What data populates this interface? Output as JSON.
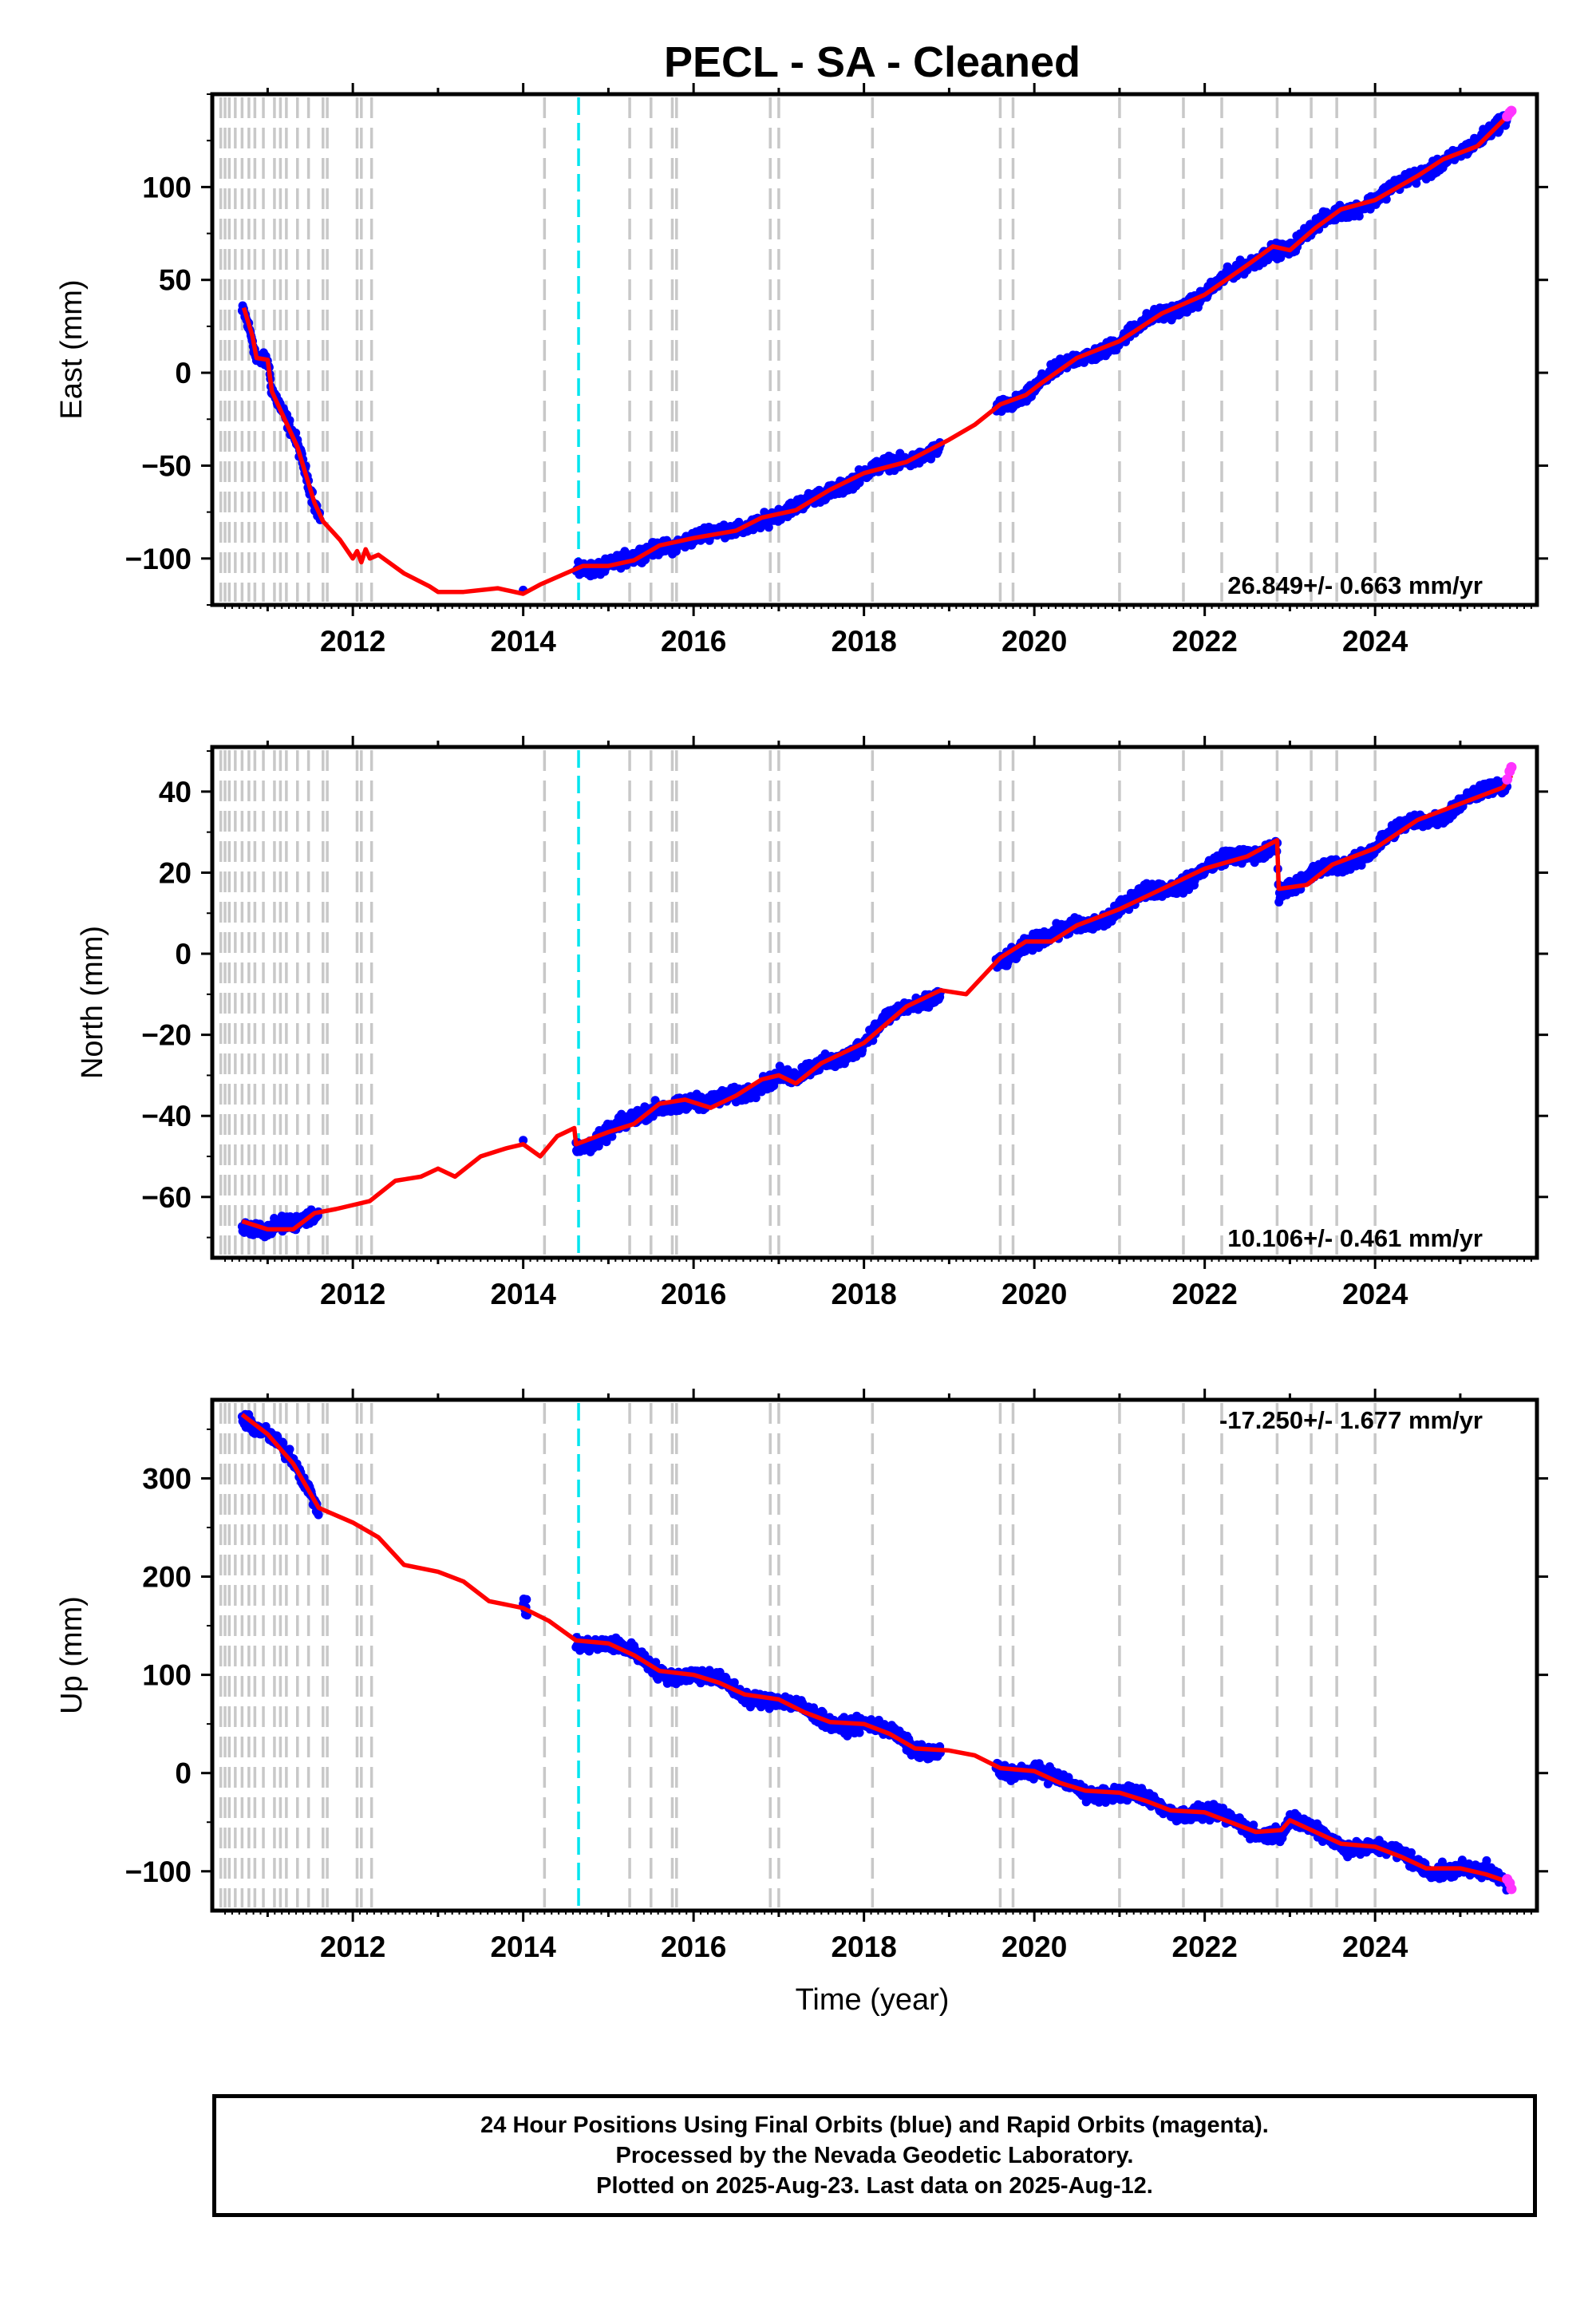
{
  "title": "PECL  - SA - Cleaned",
  "xlabel": "Time (year)",
  "colors": {
    "final": "#0000ff",
    "rapid": "#ff33ff",
    "model": "#ff0000",
    "equipment_change": "#c8c8c8",
    "earthquake": "#00e5ee"
  },
  "footer": {
    "line1": "24 Hour Positions Using Final Orbits (blue) and Rapid Orbits (magenta).",
    "line2": "Processed by the Nevada Geodetic Laboratory.",
    "line3": "Plotted on 2025-Aug-23. Last data on 2025-Aug-12."
  },
  "chart_data": [
    {
      "type": "scatter",
      "ylabel": "East (mm)",
      "rate_label": "26.849+/- 0.663 mm/yr",
      "xlim": [
        2010.35,
        2025.9
      ],
      "ylim": [
        -125,
        150
      ],
      "xticks": [
        2012,
        2014,
        2016,
        2018,
        2020,
        2022,
        2024
      ],
      "yticks": [
        -100,
        -50,
        0,
        50,
        100
      ],
      "model": [
        [
          2010.72,
          35
        ],
        [
          2010.82,
          20
        ],
        [
          2010.87,
          8
        ],
        [
          2011.0,
          7
        ],
        [
          2011.05,
          -10
        ],
        [
          2011.2,
          -25
        ],
        [
          2011.35,
          -40
        ],
        [
          2011.45,
          -55
        ],
        [
          2011.55,
          -70
        ],
        [
          2011.65,
          -80
        ],
        [
          2011.75,
          -85
        ],
        [
          2011.85,
          -90
        ],
        [
          2012.0,
          -100
        ],
        [
          2012.05,
          -96
        ],
        [
          2012.1,
          -102
        ],
        [
          2012.15,
          -95
        ],
        [
          2012.2,
          -100
        ],
        [
          2012.3,
          -98
        ],
        [
          2012.6,
          -108
        ],
        [
          2012.9,
          -115
        ],
        [
          2013.0,
          -118
        ],
        [
          2013.3,
          -118
        ],
        [
          2013.7,
          -116
        ],
        [
          2014.0,
          -119
        ],
        [
          2014.2,
          -114
        ],
        [
          2014.5,
          -108
        ],
        [
          2014.7,
          -104
        ],
        [
          2015.0,
          -104
        ],
        [
          2015.3,
          -101
        ],
        [
          2015.6,
          -93
        ],
        [
          2016.0,
          -89
        ],
        [
          2016.5,
          -85
        ],
        [
          2016.8,
          -78
        ],
        [
          2017.2,
          -74
        ],
        [
          2017.6,
          -63
        ],
        [
          2018.0,
          -54
        ],
        [
          2018.5,
          -48
        ],
        [
          2019.0,
          -36
        ],
        [
          2019.3,
          -28
        ],
        [
          2019.6,
          -17
        ],
        [
          2019.9,
          -12
        ],
        [
          2020.1,
          -5
        ],
        [
          2020.5,
          8
        ],
        [
          2021.0,
          17
        ],
        [
          2021.5,
          32
        ],
        [
          2022.0,
          42
        ],
        [
          2022.5,
          58
        ],
        [
          2022.8,
          68
        ],
        [
          2023.0,
          66
        ],
        [
          2023.3,
          78
        ],
        [
          2023.6,
          88
        ],
        [
          2024.0,
          93
        ],
        [
          2024.5,
          106
        ],
        [
          2024.8,
          115
        ],
        [
          2025.2,
          122
        ],
        [
          2025.55,
          138
        ]
      ],
      "final_segments": [
        [
          2010.7,
          2011.62
        ],
        [
          2014.62,
          2018.9
        ],
        [
          2019.55,
          2025.55
        ]
      ],
      "final_isolated": [
        [
          2014.0,
          -117
        ]
      ],
      "rapid": [
        [
          2025.55,
          138
        ],
        [
          2025.58,
          140
        ],
        [
          2025.6,
          141
        ]
      ],
      "scatter_mm": 3.0,
      "seasonal_mm": 2.0
    },
    {
      "type": "scatter",
      "ylabel": "North (mm)",
      "rate_label": "10.106+/- 0.461 mm/yr",
      "xlim": [
        2010.35,
        2025.9
      ],
      "ylim": [
        -75,
        51
      ],
      "xticks": [
        2012,
        2014,
        2016,
        2018,
        2020,
        2022,
        2024
      ],
      "yticks": [
        -60,
        -40,
        -20,
        0,
        20,
        40
      ],
      "model": [
        [
          2010.7,
          -66
        ],
        [
          2011.0,
          -68
        ],
        [
          2011.3,
          -68
        ],
        [
          2011.55,
          -64
        ],
        [
          2011.8,
          -63
        ],
        [
          2012.0,
          -62
        ],
        [
          2012.2,
          -61
        ],
        [
          2012.5,
          -56
        ],
        [
          2012.8,
          -55
        ],
        [
          2013.0,
          -53
        ],
        [
          2013.2,
          -55
        ],
        [
          2013.5,
          -50
        ],
        [
          2013.8,
          -48
        ],
        [
          2014.0,
          -47
        ],
        [
          2014.2,
          -50
        ],
        [
          2014.4,
          -45
        ],
        [
          2014.6,
          -43
        ],
        [
          2014.62,
          -47
        ],
        [
          2015.0,
          -44
        ],
        [
          2015.3,
          -42
        ],
        [
          2015.6,
          -37
        ],
        [
          2015.9,
          -36
        ],
        [
          2016.2,
          -38
        ],
        [
          2016.5,
          -35
        ],
        [
          2016.8,
          -31
        ],
        [
          2017.0,
          -30
        ],
        [
          2017.2,
          -32
        ],
        [
          2017.5,
          -27
        ],
        [
          2018.0,
          -22
        ],
        [
          2018.5,
          -13
        ],
        [
          2018.9,
          -9
        ],
        [
          2019.2,
          -10
        ],
        [
          2019.6,
          -1
        ],
        [
          2019.9,
          3
        ],
        [
          2020.2,
          3
        ],
        [
          2020.5,
          7
        ],
        [
          2021.0,
          11
        ],
        [
          2021.5,
          16
        ],
        [
          2022.0,
          21
        ],
        [
          2022.5,
          24
        ],
        [
          2022.85,
          28
        ],
        [
          2022.87,
          16
        ],
        [
          2023.2,
          17
        ],
        [
          2023.5,
          22
        ],
        [
          2024.0,
          26
        ],
        [
          2024.5,
          33
        ],
        [
          2025.0,
          37
        ],
        [
          2025.5,
          41
        ],
        [
          2025.6,
          44
        ]
      ],
      "final_segments": [
        [
          2010.7,
          2011.6
        ],
        [
          2014.62,
          2018.9
        ],
        [
          2019.55,
          2025.55
        ]
      ],
      "final_isolated": [
        [
          2014.0,
          -46
        ]
      ],
      "rapid": [
        [
          2025.55,
          43
        ],
        [
          2025.58,
          45
        ],
        [
          2025.6,
          46
        ]
      ],
      "scatter_mm": 1.5,
      "seasonal_mm": 1.5
    },
    {
      "type": "scatter",
      "ylabel": "Up (mm)",
      "rate_label": "-17.250+/- 1.677 mm/yr",
      "xlim": [
        2010.35,
        2025.9
      ],
      "ylim": [
        -140,
        380
      ],
      "xticks": [
        2012,
        2014,
        2016,
        2018,
        2020,
        2022,
        2024
      ],
      "yticks": [
        -100,
        0,
        100,
        200,
        300
      ],
      "model": [
        [
          2010.7,
          365
        ],
        [
          2011.0,
          345
        ],
        [
          2011.3,
          315
        ],
        [
          2011.6,
          270
        ],
        [
          2012.0,
          255
        ],
        [
          2012.3,
          240
        ],
        [
          2012.6,
          212
        ],
        [
          2013.0,
          205
        ],
        [
          2013.3,
          195
        ],
        [
          2013.6,
          175
        ],
        [
          2014.0,
          168
        ],
        [
          2014.3,
          155
        ],
        [
          2014.62,
          135
        ],
        [
          2015.0,
          132
        ],
        [
          2015.3,
          120
        ],
        [
          2015.6,
          104
        ],
        [
          2016.0,
          100
        ],
        [
          2016.3,
          92
        ],
        [
          2016.6,
          80
        ],
        [
          2017.0,
          75
        ],
        [
          2017.3,
          62
        ],
        [
          2017.6,
          52
        ],
        [
          2018.0,
          50
        ],
        [
          2018.3,
          40
        ],
        [
          2018.6,
          25
        ],
        [
          2019.0,
          23
        ],
        [
          2019.3,
          18
        ],
        [
          2019.6,
          5
        ],
        [
          2020.0,
          2
        ],
        [
          2020.3,
          -10
        ],
        [
          2020.6,
          -18
        ],
        [
          2021.0,
          -20
        ],
        [
          2021.3,
          -28
        ],
        [
          2021.6,
          -38
        ],
        [
          2022.0,
          -40
        ],
        [
          2022.3,
          -50
        ],
        [
          2022.6,
          -60
        ],
        [
          2022.9,
          -58
        ],
        [
          2023.0,
          -48
        ],
        [
          2023.3,
          -60
        ],
        [
          2023.6,
          -72
        ],
        [
          2024.0,
          -75
        ],
        [
          2024.3,
          -85
        ],
        [
          2024.6,
          -97
        ],
        [
          2025.0,
          -97
        ],
        [
          2025.3,
          -103
        ],
        [
          2025.6,
          -112
        ]
      ],
      "final_segments": [
        [
          2010.7,
          2011.6
        ],
        [
          2014.0,
          2014.05
        ],
        [
          2014.62,
          2018.9
        ],
        [
          2019.55,
          2025.55
        ]
      ],
      "final_isolated": [],
      "rapid": [
        [
          2025.55,
          -108
        ],
        [
          2025.58,
          -112
        ],
        [
          2025.6,
          -118
        ]
      ],
      "scatter_mm": 6,
      "seasonal_mm": 4
    }
  ],
  "equipment_changes": [
    2010.45,
    2010.5,
    2010.55,
    2010.62,
    2010.7,
    2010.78,
    2010.85,
    2010.95,
    2011.08,
    2011.15,
    2011.22,
    2011.35,
    2011.48,
    2011.65,
    2011.7,
    2012.05,
    2012.1,
    2012.22,
    2014.25,
    2015.25,
    2015.5,
    2015.75,
    2015.8,
    2016.9,
    2017.0,
    2018.1,
    2019.6,
    2019.75,
    2021.0,
    2021.75,
    2022.2,
    2022.85,
    2023.25,
    2023.55,
    2024.0
  ],
  "earthquake": 2014.65
}
